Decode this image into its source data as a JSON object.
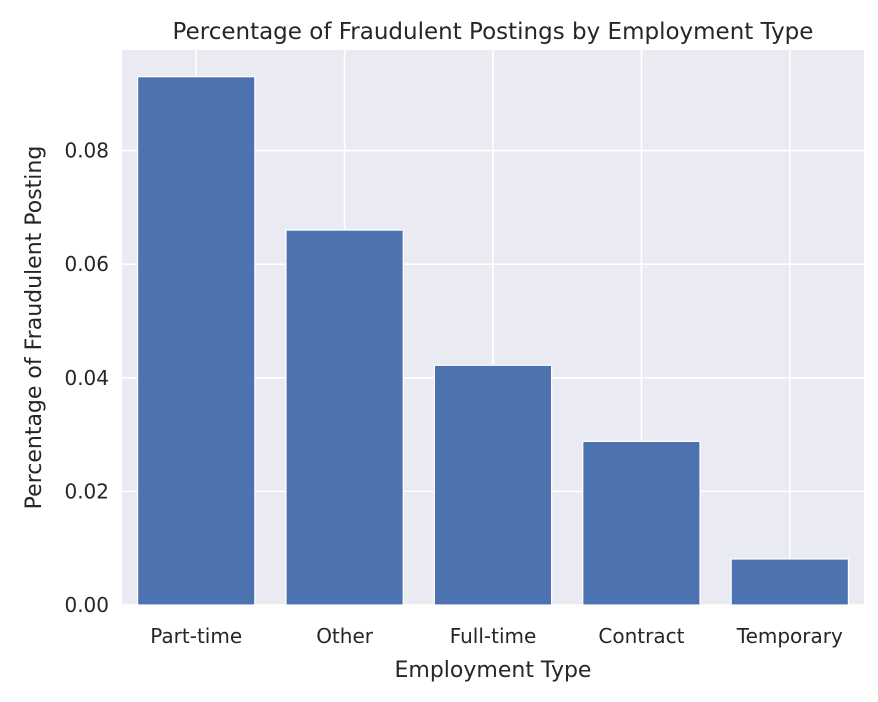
{
  "chart_data": {
    "type": "bar",
    "title": "Percentage of Fraudulent Postings by Employment Type",
    "xlabel": "Employment Type",
    "ylabel": "Percentage of Fraudulent Posting",
    "categories": [
      "Part-time",
      "Other",
      "Full-time",
      "Contract",
      "Temporary"
    ],
    "values": [
      0.093,
      0.066,
      0.0422,
      0.0288,
      0.0081
    ],
    "ylim": [
      0,
      0.0977
    ],
    "yticks": [
      0.0,
      0.02,
      0.04,
      0.06,
      0.08
    ],
    "ytick_labels": [
      "0.00",
      "0.02",
      "0.04",
      "0.06",
      "0.08"
    ],
    "grid": true,
    "legend": "none",
    "colors": {
      "bar": "#4c72b0",
      "background": "#eaeaf2",
      "grid": "#ffffff",
      "text": "#262626"
    }
  }
}
